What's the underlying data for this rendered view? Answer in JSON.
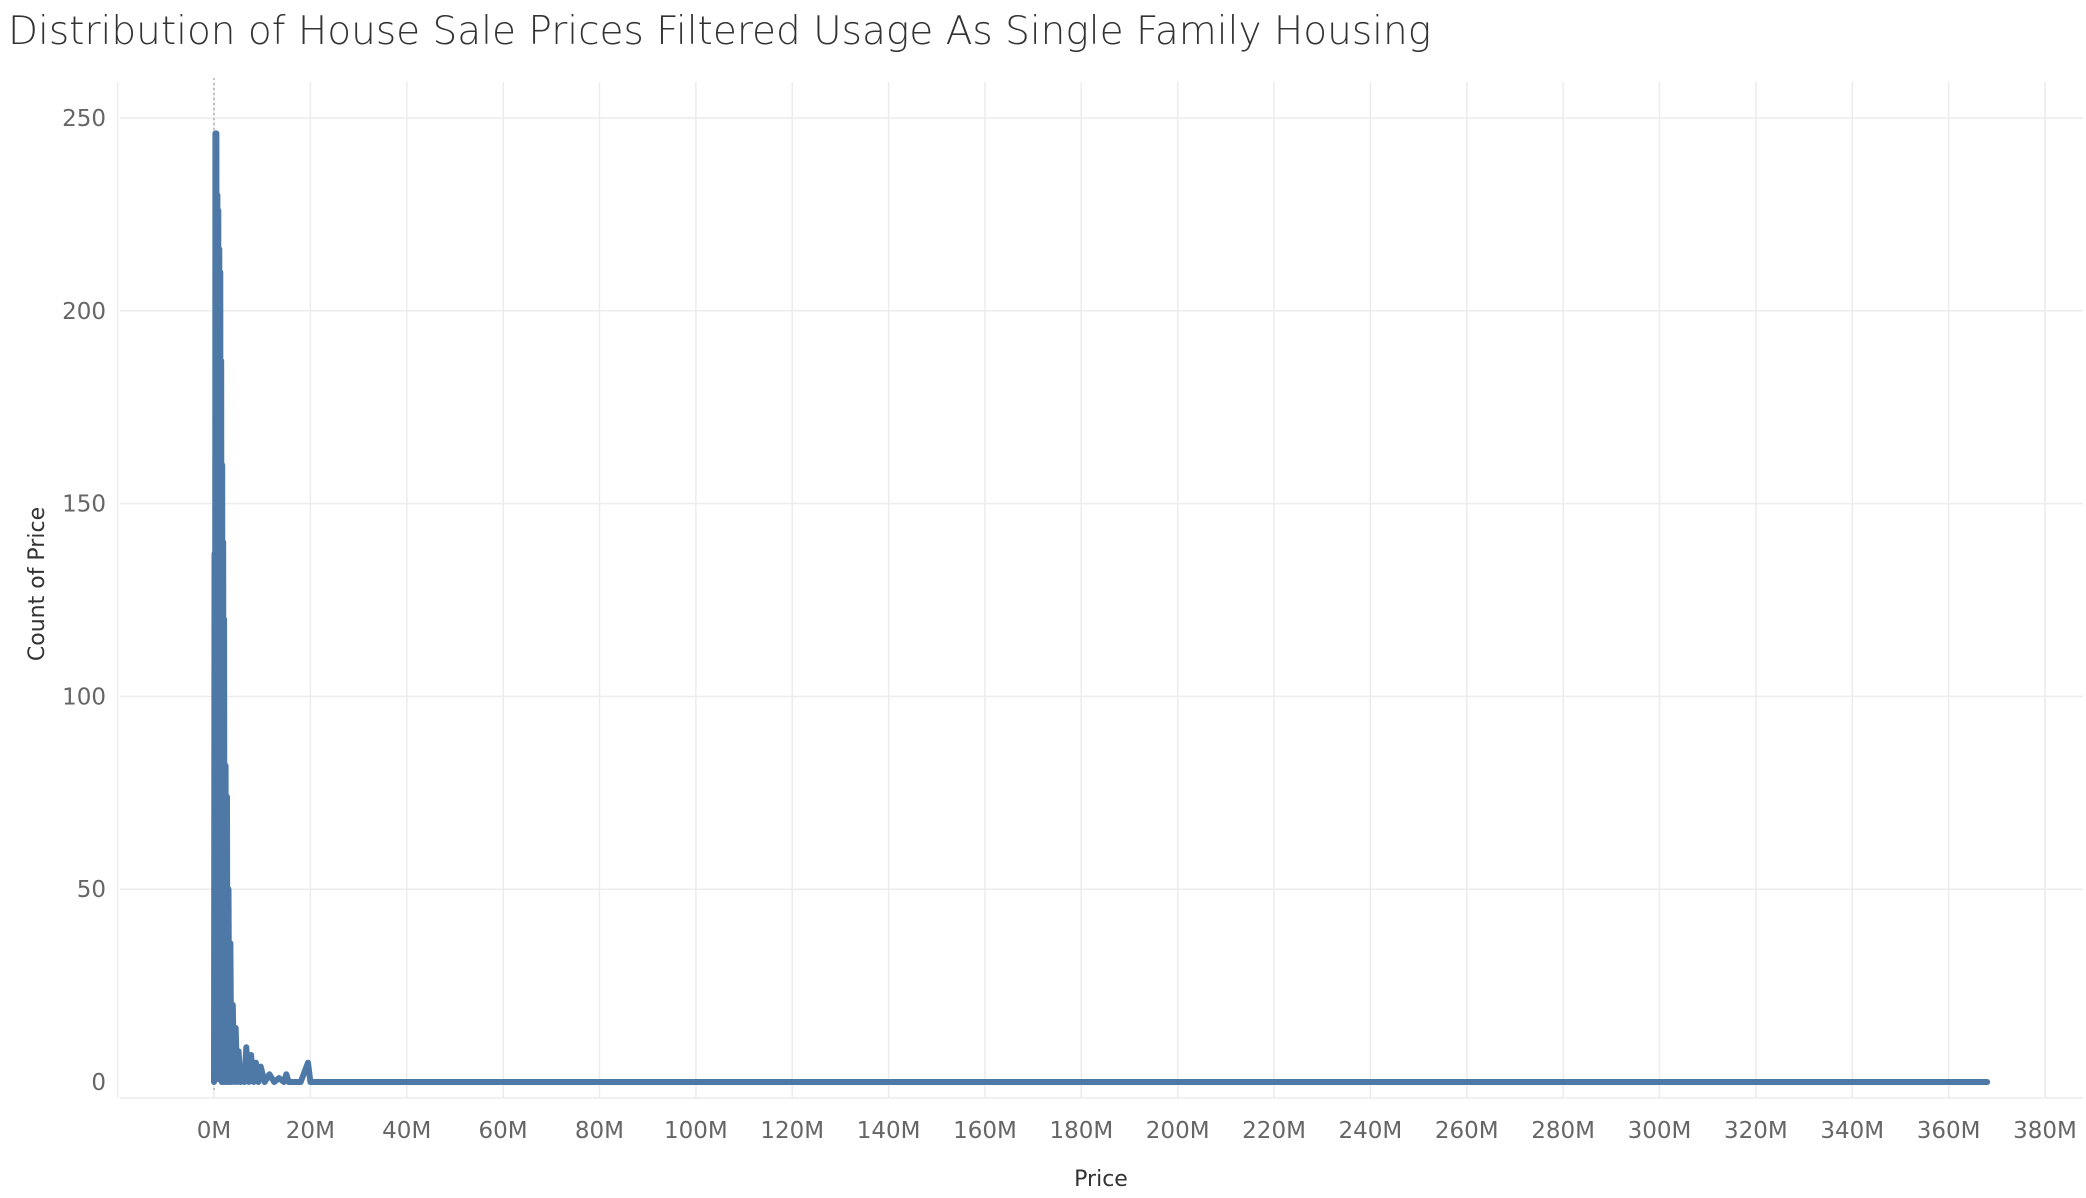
{
  "chart_data": {
    "type": "line",
    "title": "Distribution of House Sale Prices Filtered Usage As Single Family Housing",
    "xlabel": "Price",
    "ylabel": "Count of Price",
    "x_unit": "millions",
    "xlim": [
      -20,
      385
    ],
    "ylim": [
      -4,
      262
    ],
    "x_ticks": [
      0,
      20,
      40,
      60,
      80,
      100,
      120,
      140,
      160,
      180,
      200,
      220,
      240,
      260,
      280,
      300,
      320,
      340,
      360,
      380
    ],
    "x_tick_labels": [
      "0M",
      "20M",
      "40M",
      "60M",
      "80M",
      "100M",
      "120M",
      "140M",
      "160M",
      "180M",
      "200M",
      "220M",
      "240M",
      "260M",
      "280M",
      "300M",
      "320M",
      "340M",
      "360M",
      "380M"
    ],
    "y_ticks": [
      0,
      50,
      100,
      150,
      200,
      250
    ],
    "y_tick_labels": [
      "0",
      "50",
      "100",
      "150",
      "200",
      "250"
    ],
    "grid": true,
    "reference_line_x": 0,
    "color": "#4e79a7",
    "series": [
      {
        "x": [
          0.0,
          0.1,
          0.2,
          0.3,
          0.4,
          0.5,
          0.6,
          0.7,
          0.8,
          0.9,
          1.0,
          1.1,
          1.2,
          1.3,
          1.4,
          1.5,
          1.6,
          1.7,
          1.8,
          1.9,
          2.0,
          2.1,
          2.2,
          2.4,
          2.5,
          2.7,
          2.8,
          3.0,
          3.2,
          3.4,
          3.6,
          3.9,
          4.2,
          4.5,
          4.8,
          5.1,
          5.5,
          5.9,
          6.3,
          6.7,
          7.2,
          7.7,
          8.2,
          8.7,
          9.2,
          9.7,
          10.5,
          11.5,
          12.5,
          13.5,
          14.5,
          15.0,
          15.5,
          16.5,
          18.0,
          19.5,
          20.0,
          20.5,
          22.0,
          24.0,
          30.0,
          32.0,
          33.0,
          100.0,
          166.0,
          167.0,
          368.0
        ],
        "y": [
          0,
          137,
          10,
          246,
          20,
          246,
          5,
          230,
          25,
          226,
          5,
          216,
          30,
          210,
          10,
          187,
          0,
          160,
          5,
          140,
          0,
          120,
          0,
          82,
          0,
          74,
          0,
          50,
          0,
          36,
          0,
          20,
          0,
          14,
          0,
          8,
          0,
          2,
          0,
          9,
          0,
          7,
          0,
          5,
          0,
          4,
          0,
          2,
          0,
          1,
          0,
          2,
          0,
          0,
          0,
          5,
          0,
          0,
          0,
          0,
          0,
          0,
          0,
          0,
          0,
          0,
          0
        ]
      }
    ]
  }
}
